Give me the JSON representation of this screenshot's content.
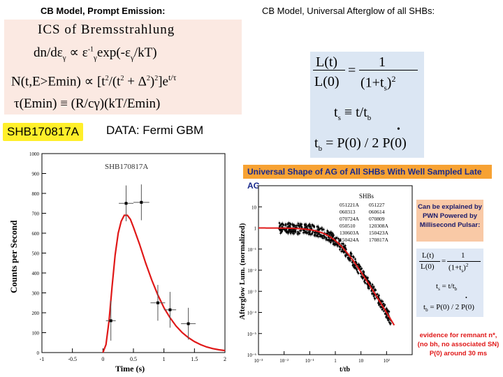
{
  "header": {
    "left_title": "CB  Model, Prompt Emission:",
    "right_title": "CB  Model, Universal Afterglow of all  SHBs:"
  },
  "prompt_formulas": {
    "line1": "ICS of  Bremsstrahlung",
    "line2": "dn/dε",
    "line2_rest": "∝ ε",
    "line2_exp": "-1",
    "line2_tail": "exp(-ε",
    "line2_tail2": "/kT)",
    "line3": "N(t,E>Emin) ∝ [t",
    "line3_b": "/(t",
    "line3_c": " + Δ",
    "line3_d": ")",
    "line3_e": "]e",
    "line3_exp": "t/τ",
    "line4": "τ(Emin) ≡ (R/cγ)(kT/Emin)"
  },
  "badge": {
    "text": "SHB170817A",
    "data_label": "DATA:  Fermi GBM"
  },
  "afterglow_formula": {
    "lt": "L(t)",
    "l0": "L(0)",
    "eq": "=",
    "one": "1",
    "den": "(1+t",
    "den_sub": "s",
    "den_sup": "2",
    "den_close": ")",
    "ts_line": "t",
    "ts_rest": " ≡  t/t",
    "tb_line": "t",
    "tb_rest": " = P(0)",
    "tb_div": "/ 2",
    "tb_p": "P(0)",
    "dot": "•"
  },
  "banner": {
    "text": "Universal  Shape  of  AG  of All SHBs  With Well Sampled  Late  AG"
  },
  "pwn_note": {
    "l1": "Can be explained by",
    "l2": "PWN  Powered  by",
    "l3": "Millisecond Pulsar:"
  },
  "small_formula": {
    "lt": "L(t)",
    "l0": "L(0)",
    "one": "1",
    "den": "(1+t",
    "ts": "t",
    "ts_rest": " =  t/t",
    "tb": "t",
    "tb_rest": " = P(0) / 2 P(0)"
  },
  "evidence": {
    "l1": "evidence for  remnant n*,",
    "l2": "(no bh, no associated SN)",
    "l3": "P(0)  around  30 ms"
  },
  "colors": {
    "badge": "#ffef2a",
    "banner": "#f7a233",
    "curve": "#e01818",
    "formula_bg": "#fbe9e2",
    "blue_bg": "#dbe6f3"
  },
  "chart_data": [
    {
      "type": "scatter",
      "title": "SHB170817A",
      "xlabel": "Time (s)",
      "ylabel": "Counts per Second",
      "xlim": [
        -1,
        2
      ],
      "ylim": [
        0,
        1000
      ],
      "x_ticks": [
        "-1",
        "-0.5",
        "0",
        "0.5",
        "1",
        "1.5",
        "2"
      ],
      "y_ticks": [
        "0",
        "100",
        "200",
        "300",
        "400",
        "500",
        "600",
        "700",
        "800",
        "900",
        "1000"
      ],
      "points": [
        {
          "x": 0.13,
          "y": 160,
          "xerr": 0.08,
          "yerr": 100
        },
        {
          "x": 0.38,
          "y": 750,
          "xerr": 0.12,
          "yerr": 90
        },
        {
          "x": 0.63,
          "y": 755,
          "xerr": 0.13,
          "yerr": 90
        },
        {
          "x": 0.9,
          "y": 250,
          "xerr": 0.12,
          "yerr": 90
        },
        {
          "x": 1.1,
          "y": 215,
          "xerr": 0.1,
          "yerr": 90
        },
        {
          "x": 1.4,
          "y": 145,
          "xerr": 0.12,
          "yerr": 80
        }
      ],
      "fit_curve": [
        {
          "x": 0.0,
          "y": 0
        },
        {
          "x": 0.05,
          "y": 40
        },
        {
          "x": 0.1,
          "y": 160
        },
        {
          "x": 0.15,
          "y": 330
        },
        {
          "x": 0.2,
          "y": 490
        },
        {
          "x": 0.25,
          "y": 600
        },
        {
          "x": 0.3,
          "y": 660
        },
        {
          "x": 0.35,
          "y": 690
        },
        {
          "x": 0.4,
          "y": 690
        },
        {
          "x": 0.45,
          "y": 670
        },
        {
          "x": 0.5,
          "y": 630
        },
        {
          "x": 0.6,
          "y": 545
        },
        {
          "x": 0.7,
          "y": 450
        },
        {
          "x": 0.8,
          "y": 365
        },
        {
          "x": 0.9,
          "y": 290
        },
        {
          "x": 1.0,
          "y": 225
        },
        {
          "x": 1.1,
          "y": 175
        },
        {
          "x": 1.2,
          "y": 133
        },
        {
          "x": 1.3,
          "y": 100
        },
        {
          "x": 1.4,
          "y": 75
        },
        {
          "x": 1.5,
          "y": 55
        },
        {
          "x": 1.6,
          "y": 40
        },
        {
          "x": 1.7,
          "y": 28
        },
        {
          "x": 1.8,
          "y": 20
        },
        {
          "x": 1.9,
          "y": 14
        },
        {
          "x": 2.0,
          "y": 10
        }
      ]
    },
    {
      "type": "scatter",
      "xlabel": "t/tb",
      "ylabel": "Afterglow Lum. (normalized)",
      "log_scale": true,
      "x_ticks": [
        "10⁻³",
        "10⁻²",
        "10⁻¹",
        "1",
        "10",
        "10²"
      ],
      "y_ticks": [
        "10",
        "1",
        "10⁻¹",
        "10⁻²",
        "10⁻³",
        "10⁻⁴",
        "10⁻⁵",
        "10⁻⁶"
      ],
      "legend_title": "SHBs",
      "legend": [
        "051221A",
        "051227",
        "060313",
        "060614",
        "070724A",
        "070809",
        "050510",
        "120308A",
        "130603A",
        "150423A",
        "150424A",
        "170817A"
      ],
      "fit_curve": "L/L0 = 1/(1+t/tb)^2"
    }
  ]
}
